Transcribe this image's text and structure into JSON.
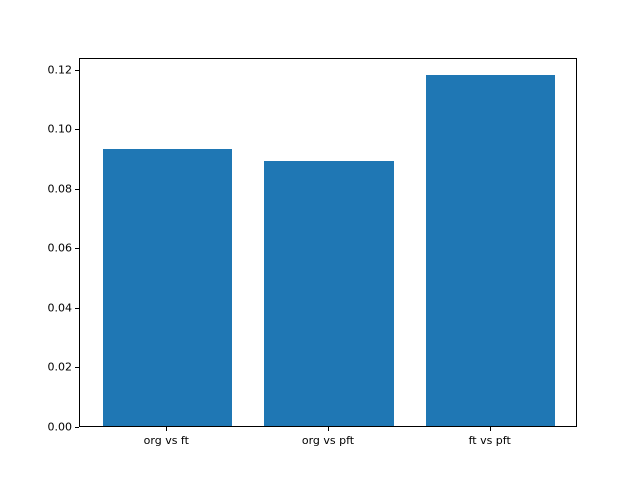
{
  "figure": {
    "background_color": "#ffffff",
    "bar_color": "#1f77b4",
    "axis_color": "#000000"
  },
  "chart_data": {
    "type": "bar",
    "title": "",
    "xlabel": "",
    "ylabel": "",
    "categories": [
      "org vs ft",
      "org vs pft",
      "ft vs pft"
    ],
    "values": [
      0.093,
      0.089,
      0.118
    ],
    "ylim": [
      0,
      0.124
    ],
    "yticks": [
      0.0,
      0.02,
      0.04,
      0.06,
      0.08,
      0.1,
      0.12
    ],
    "ytick_labels": [
      "0.00",
      "0.02",
      "0.04",
      "0.06",
      "0.08",
      "0.10",
      "0.12"
    ],
    "bar_width_fraction": 0.8,
    "grid": false,
    "legend": null
  }
}
